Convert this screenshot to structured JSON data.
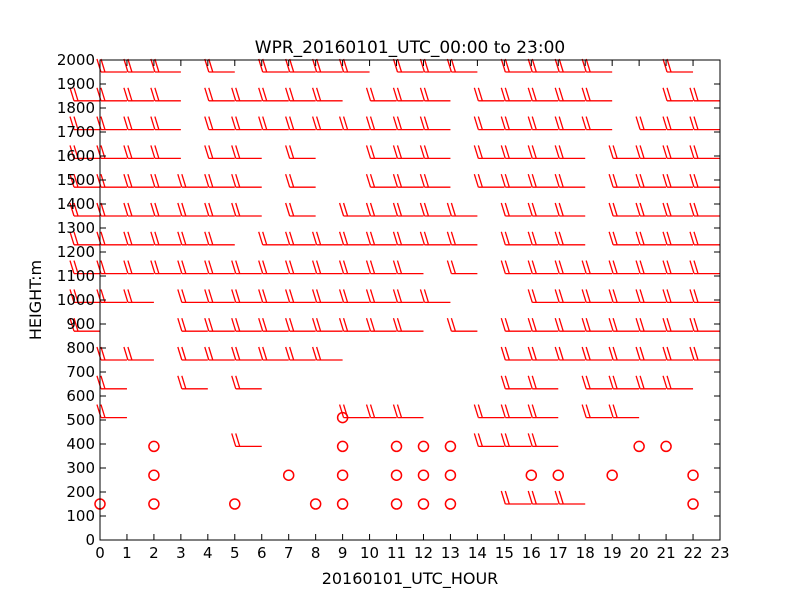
{
  "chart_data": {
    "type": "wind_barb",
    "title": "WPR_20160101_UTC_00:00 to 23:00",
    "xlabel": "20160101_UTC_HOUR",
    "ylabel": "HEIGHT:m",
    "xlim": [
      0,
      23
    ],
    "ylim": [
      0,
      2000
    ],
    "xticks": [
      "0",
      "1",
      "2",
      "3",
      "4",
      "5",
      "6",
      "7",
      "8",
      "9",
      "10",
      "11",
      "12",
      "13",
      "14",
      "15",
      "16",
      "17",
      "18",
      "19",
      "20",
      "21",
      "22",
      "23"
    ],
    "yticks": [
      "0",
      "100",
      "200",
      "300",
      "400",
      "500",
      "600",
      "700",
      "800",
      "900",
      "1000",
      "1100",
      "1200",
      "1300",
      "1400",
      "1500",
      "1600",
      "1700",
      "1800",
      "1900",
      "2000"
    ],
    "grid": false,
    "series_color": "#ff0000",
    "calm": [
      {
        "x": 0,
        "y": 150
      },
      {
        "x": 2,
        "y": 150
      },
      {
        "x": 5,
        "y": 150
      },
      {
        "x": 8,
        "y": 150
      },
      {
        "x": 9,
        "y": 150
      },
      {
        "x": 11,
        "y": 150
      },
      {
        "x": 12,
        "y": 150
      },
      {
        "x": 13,
        "y": 150
      },
      {
        "x": 22,
        "y": 150
      },
      {
        "x": 2,
        "y": 270
      },
      {
        "x": 7,
        "y": 270
      },
      {
        "x": 9,
        "y": 270
      },
      {
        "x": 11,
        "y": 270
      },
      {
        "x": 12,
        "y": 270
      },
      {
        "x": 13,
        "y": 270
      },
      {
        "x": 16,
        "y": 270
      },
      {
        "x": 17,
        "y": 270
      },
      {
        "x": 19,
        "y": 270
      },
      {
        "x": 22,
        "y": 270
      },
      {
        "x": 2,
        "y": 390
      },
      {
        "x": 9,
        "y": 390
      },
      {
        "x": 11,
        "y": 390
      },
      {
        "x": 12,
        "y": 390
      },
      {
        "x": 13,
        "y": 390
      },
      {
        "x": 20,
        "y": 390
      },
      {
        "x": 21,
        "y": 390
      },
      {
        "x": 9,
        "y": 510
      }
    ],
    "barbs": [
      {
        "y": 1950,
        "x": [
          1,
          2,
          3,
          5,
          7,
          8,
          9,
          10,
          12,
          13,
          14,
          16,
          17,
          18,
          19,
          22
        ]
      },
      {
        "y": 1830,
        "x": [
          0,
          1,
          2,
          3,
          5,
          6,
          7,
          8,
          9,
          11,
          12,
          13,
          15,
          16,
          17,
          18,
          19,
          22,
          23
        ]
      },
      {
        "y": 1710,
        "x": [
          0,
          1,
          2,
          3,
          5,
          6,
          7,
          8,
          9,
          10,
          11,
          12,
          13,
          15,
          16,
          17,
          18,
          19,
          21,
          22,
          23
        ]
      },
      {
        "y": 1590,
        "x": [
          0,
          1,
          2,
          3,
          5,
          6,
          8,
          11,
          12,
          13,
          15,
          16,
          17,
          18,
          20,
          21,
          22,
          23
        ]
      },
      {
        "y": 1470,
        "x": [
          0,
          1,
          2,
          3,
          4,
          5,
          6,
          8,
          11,
          12,
          13,
          15,
          16,
          17,
          18,
          20,
          21,
          22,
          23
        ]
      },
      {
        "y": 1350,
        "x": [
          0,
          1,
          2,
          3,
          4,
          5,
          6,
          8,
          10,
          11,
          12,
          13,
          14,
          16,
          17,
          18,
          20,
          21,
          22,
          23
        ]
      },
      {
        "y": 1230,
        "x": [
          0,
          1,
          2,
          3,
          4,
          5,
          7,
          8,
          9,
          10,
          11,
          12,
          13,
          14,
          16,
          17,
          18,
          20,
          21,
          22,
          23
        ]
      },
      {
        "y": 1110,
        "x": [
          0,
          1,
          2,
          3,
          4,
          5,
          6,
          7,
          8,
          9,
          10,
          11,
          12,
          14,
          16,
          17,
          18,
          19,
          20,
          21,
          22,
          23
        ]
      },
      {
        "y": 990,
        "x": [
          0,
          1,
          2,
          4,
          5,
          6,
          7,
          8,
          9,
          10,
          11,
          12,
          13,
          17,
          18,
          19,
          20,
          21,
          22,
          23
        ]
      },
      {
        "y": 870,
        "x": [
          0,
          4,
          5,
          6,
          7,
          8,
          9,
          10,
          11,
          12,
          14,
          16,
          17,
          18,
          19,
          20,
          21,
          22,
          23
        ]
      },
      {
        "y": 750,
        "x": [
          1,
          2,
          4,
          5,
          6,
          7,
          8,
          9,
          16,
          17,
          18,
          19,
          20,
          21,
          22,
          23
        ]
      },
      {
        "y": 630,
        "x": [
          1,
          4,
          6,
          16,
          17,
          19,
          20,
          21,
          22
        ]
      },
      {
        "y": 510,
        "x": [
          1,
          10,
          11,
          12,
          15,
          16,
          17,
          19,
          20
        ]
      },
      {
        "y": 390,
        "x": [
          6,
          15,
          16,
          17
        ]
      },
      {
        "y": 150,
        "x": [
          16,
          17,
          18
        ]
      }
    ]
  }
}
